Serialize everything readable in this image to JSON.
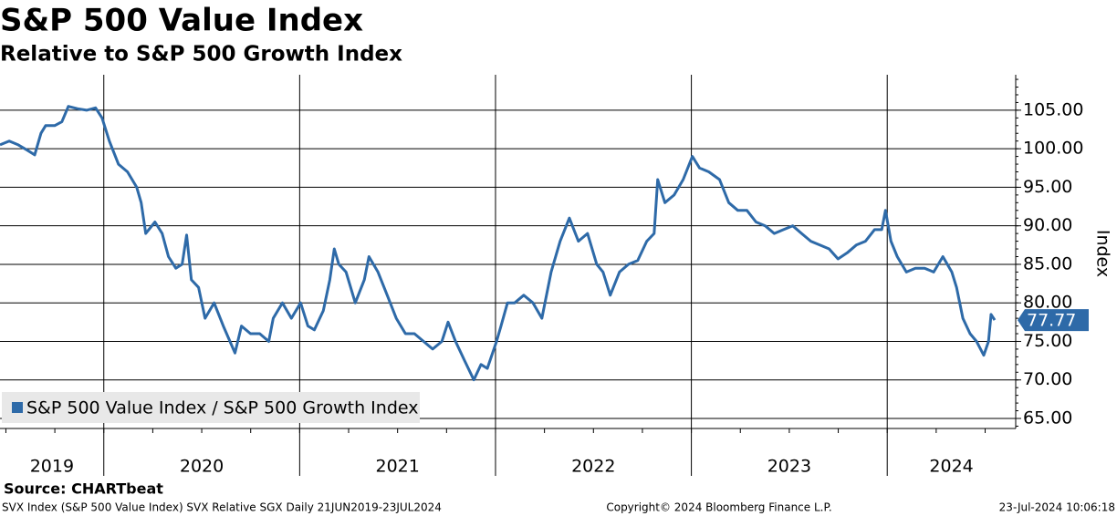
{
  "chart_data": {
    "type": "line",
    "title": "S&P 500 Value Index",
    "subtitle": "Relative to S&P 500 Growth Index",
    "y_label": "Index",
    "source": "Source: CHARTbeat",
    "footer_left": "SVX Index (S&P 500 Value Index) SVX Relative SGX  Daily 21JUN2019-23JUL2024",
    "footer_center": "Copyright© 2024 Bloomberg Finance L.P.",
    "footer_right": "23-Jul-2024 10:06:18",
    "year_labels": [
      "2019",
      "2020",
      "2021",
      "2022",
      "2023",
      "2024"
    ],
    "xlim": [
      2019.47,
      2024.656
    ],
    "xticks": [
      2020,
      2021,
      2022,
      2023,
      2024
    ],
    "ylim": [
      63.7,
      109.6
    ],
    "yticks": [
      {
        "value": 65,
        "label": "65.00"
      },
      {
        "value": 70,
        "label": "70.00"
      },
      {
        "value": 75,
        "label": "75.00"
      },
      {
        "value": 80,
        "label": "80.00"
      },
      {
        "value": 85,
        "label": "85.00"
      },
      {
        "value": 90,
        "label": "90.00"
      },
      {
        "value": 95,
        "label": "95.00"
      },
      {
        "value": 100,
        "label": "100.00"
      },
      {
        "value": 105,
        "label": "105.00"
      }
    ],
    "grid": true,
    "legend": "bottom-left",
    "x": [
      2019.47,
      2019.517,
      2019.563,
      2019.61,
      2019.647,
      2019.679,
      2019.703,
      2019.749,
      2019.786,
      2019.819,
      2019.865,
      2019.912,
      2019.958,
      2019.991,
      2020.028,
      2020.075,
      2020.121,
      2020.168,
      2020.191,
      2020.214,
      2020.261,
      2020.298,
      2020.33,
      2020.368,
      2020.4,
      2020.423,
      2020.447,
      2020.484,
      2020.517,
      2020.563,
      2020.61,
      2020.67,
      2020.703,
      2020.749,
      2020.796,
      2020.842,
      2020.865,
      2020.912,
      2020.958,
      2021.005,
      2021.042,
      2021.075,
      2021.121,
      2021.154,
      2021.177,
      2021.2,
      2021.237,
      2021.284,
      2021.33,
      2021.354,
      2021.4,
      2021.447,
      2021.493,
      2021.54,
      2021.586,
      2021.633,
      2021.679,
      2021.726,
      2021.758,
      2021.796,
      2021.842,
      2021.889,
      2021.926,
      2021.958,
      2022.005,
      2022.028,
      2022.061,
      2022.098,
      2022.144,
      2022.191,
      2022.237,
      2022.284,
      2022.33,
      2022.377,
      2022.423,
      2022.47,
      2022.517,
      2022.549,
      2022.586,
      2022.633,
      2022.679,
      2022.726,
      2022.772,
      2022.81,
      2022.828,
      2022.865,
      2022.912,
      2022.958,
      2023.005,
      2023.042,
      2023.089,
      2023.144,
      2023.191,
      2023.237,
      2023.284,
      2023.33,
      2023.377,
      2023.423,
      2023.47,
      2023.517,
      2023.563,
      2023.61,
      2023.656,
      2023.703,
      2023.749,
      2023.796,
      2023.842,
      2023.889,
      2023.935,
      2023.972,
      2023.991,
      2024.019,
      2024.051,
      2024.098,
      2024.144,
      2024.191,
      2024.237,
      2024.284,
      2024.33,
      2024.354,
      2024.386,
      2024.423,
      2024.456,
      2024.493,
      2024.517,
      2024.53,
      2024.549
    ],
    "series": [
      {
        "name": "S&P 500 Value Index / S&P 500 Growth Index",
        "color": "#2e6aa8",
        "values": [
          100.5,
          101,
          100.5,
          99.8,
          99.2,
          102,
          103,
          103,
          103.5,
          105.5,
          105.2,
          105,
          105.3,
          104,
          101,
          98,
          97,
          95,
          93,
          89,
          90.5,
          89,
          86,
          84.5,
          85,
          88.8,
          83,
          82,
          78,
          80,
          77,
          73.5,
          77,
          76,
          76,
          75,
          78,
          80,
          78,
          80,
          77,
          76.5,
          79,
          83,
          87,
          85,
          84,
          80,
          83,
          86,
          84,
          81,
          78,
          76,
          76,
          75,
          74,
          75,
          77.5,
          75,
          72.5,
          70,
          72,
          71.5,
          75,
          77,
          80,
          80,
          81,
          80,
          78,
          84,
          88,
          91,
          88,
          89,
          85,
          84,
          81,
          84,
          85,
          85.5,
          88,
          89,
          96,
          93,
          94,
          96,
          99,
          97.5,
          97,
          96,
          93,
          92,
          92,
          90.5,
          90,
          89,
          89.5,
          90,
          89,
          88,
          87.5,
          87,
          85.7,
          86.5,
          87.5,
          88,
          89.5,
          89.5,
          92,
          88,
          86,
          84,
          84.5,
          84.5,
          84,
          86,
          84,
          82,
          78,
          76,
          75,
          73.2,
          75,
          78.5,
          77.77
        ]
      }
    ]
  }
}
